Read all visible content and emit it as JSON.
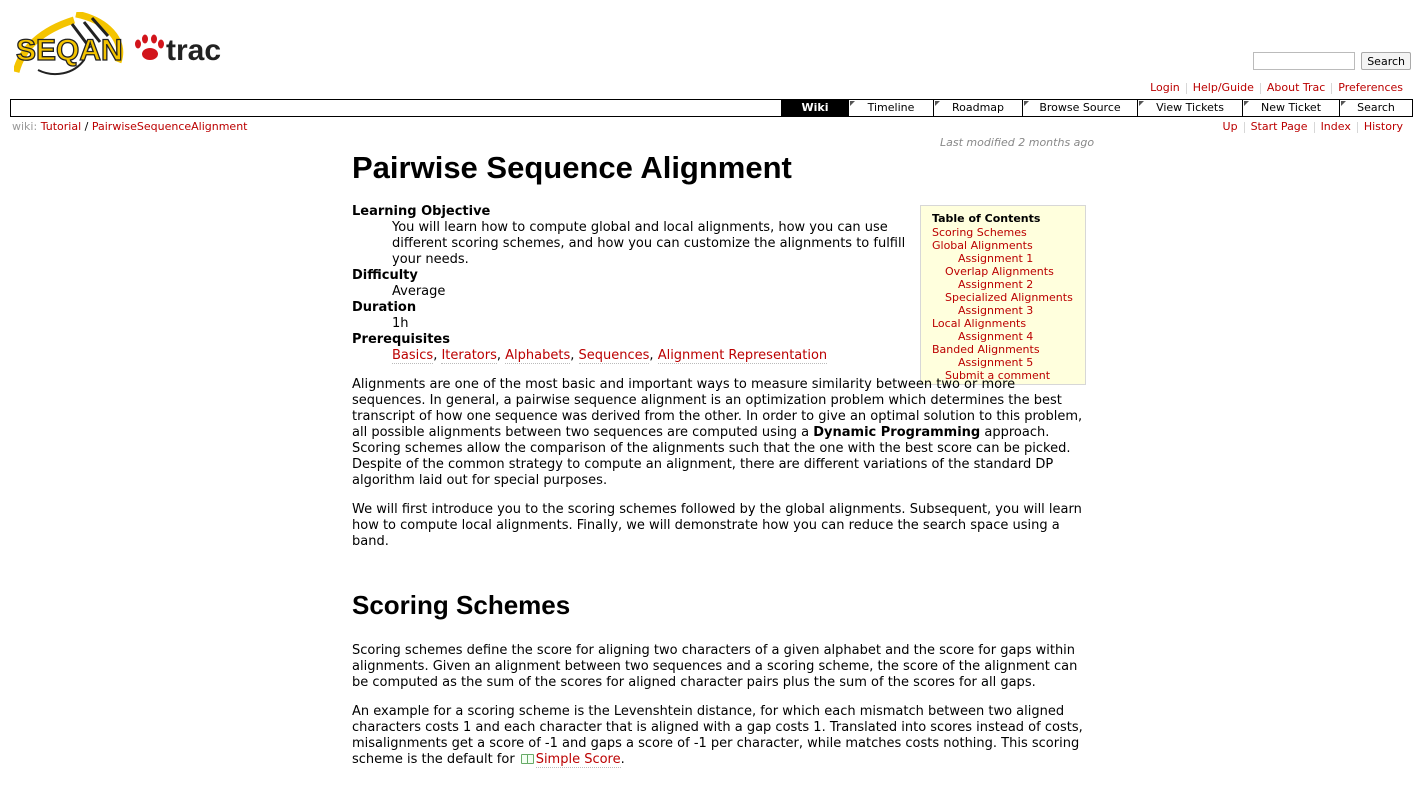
{
  "header": {
    "logo_text": "SEQAN trac",
    "search": {
      "value": "",
      "button_label": "Search"
    }
  },
  "metanav": [
    "Login",
    "Help/Guide",
    "About Trac",
    "Preferences"
  ],
  "mainnav": [
    "Wiki",
    "Timeline",
    "Roadmap",
    "Browse Source",
    "View Tickets",
    "New Ticket",
    "Search"
  ],
  "mainnav_active": "Wiki",
  "breadcrumb": {
    "prefix": "wiki:",
    "items": [
      "Tutorial",
      "PairwiseSequenceAlignment"
    ],
    "separator": "/"
  },
  "ctxtnav": [
    "Up",
    "Start Page",
    "Index",
    "History"
  ],
  "last_modified": "Last modified 2 months ago",
  "page": {
    "title": "Pairwise Sequence Alignment",
    "objective_label": "Learning Objective",
    "objective_text": "You will learn how to compute global and local alignments, how you can use different scoring schemes, and how you can customize the alignments to fulfill your needs.",
    "difficulty_label": "Difficulty",
    "difficulty_value": "Average",
    "duration_label": "Duration",
    "duration_value": "1h",
    "prereq_label": "Prerequisites",
    "prereq_links": [
      "Basics",
      "Iterators",
      "Alphabets",
      "Sequences",
      "Alignment Representation"
    ],
    "intro_p1_a": "Alignments are one of the most basic and important ways to measure similarity between two or more sequences. In general, a pairwise sequence alignment is an optimization problem which determines the best transcript of how one sequence was derived from the other. In order to give an optimal solution to this problem, all possible alignments between two sequences are computed using a",
    "intro_p1_bold": "Dynamic Programming",
    "intro_p1_b": "approach. Scoring schemes allow the comparison of the alignments such that the one with the best score can be picked. Despite of the common strategy to compute an alignment, there are different variations of the standard DP algorithm laid out for special purposes.",
    "intro_p2": "We will first introduce you to the scoring schemes followed by the global alignments. Subsequent, you will learn how to compute local alignments. Finally, we will demonstrate how you can reduce the search space using a band.",
    "section1_title": "Scoring Schemes",
    "s1_p1": "Scoring schemes define the score for aligning two characters of a given alphabet and the score for gaps within alignments. Given an alignment between two sequences and a scoring scheme, the score of the alignment can be computed as the sum of the scores for aligned character pairs plus the sum of the scores for all gaps.",
    "s1_p2": "An example for a scoring scheme is the Levenshtein distance, for which each mismatch between two aligned characters costs 1 and each character that is aligned with a gap costs 1. Translated into scores instead of costs, misalignments get a score of -1 and gaps a score of -1 per character, while matches costs nothing. This scoring scheme is the default for",
    "s1_p2_link": "Simple Score",
    "s1_p2_end": "."
  },
  "toc": {
    "title": "Table of Contents",
    "items": [
      {
        "label": "Scoring Schemes",
        "level": 1
      },
      {
        "label": "Global Alignments",
        "level": 1
      },
      {
        "label": "Assignment 1",
        "level": 3
      },
      {
        "label": "Overlap Alignments",
        "level": 2
      },
      {
        "label": "Assignment 2",
        "level": 3
      },
      {
        "label": "Specialized Alignments",
        "level": 2
      },
      {
        "label": "Assignment 3",
        "level": 3
      },
      {
        "label": "Local Alignments",
        "level": 1
      },
      {
        "label": "Assignment 4",
        "level": 3
      },
      {
        "label": "Banded Alignments",
        "level": 1
      },
      {
        "label": "Assignment 5",
        "level": 3
      },
      {
        "label": "Submit a comment",
        "level": 2
      }
    ]
  }
}
